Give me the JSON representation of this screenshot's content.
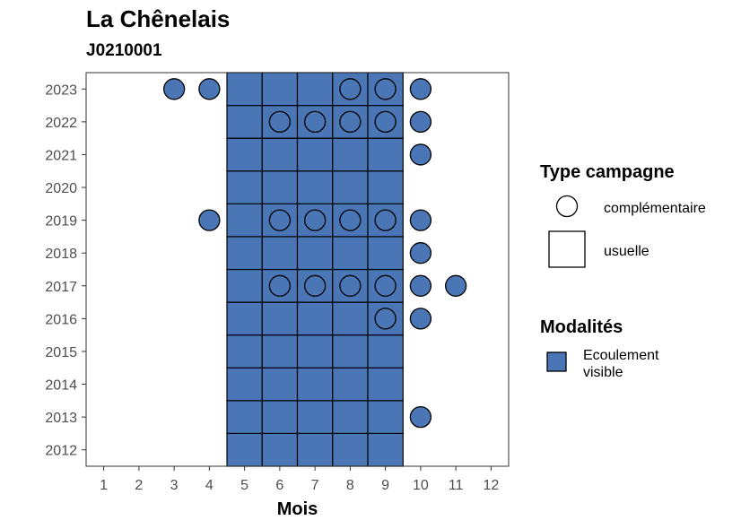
{
  "title": "La Chênelais",
  "subtitle": "J0210001",
  "chart_data": {
    "type": "scatter",
    "title": "La Chênelais",
    "subtitle": "J0210001",
    "xlabel": "Mois",
    "ylabel": "",
    "x_ticks": [
      "1",
      "2",
      "3",
      "4",
      "5",
      "6",
      "7",
      "8",
      "9",
      "10",
      "11",
      "12"
    ],
    "y_ticks": [
      "2012",
      "2013",
      "2014",
      "2015",
      "2016",
      "2017",
      "2018",
      "2019",
      "2020",
      "2021",
      "2022",
      "2023"
    ],
    "xlim": [
      0.5,
      12.5
    ],
    "ylim": [
      2011.5,
      2023.5
    ],
    "grid": false,
    "fill_color": "#4a76b6",
    "usuelle": {
      "months": [
        5,
        6,
        7,
        8,
        9
      ],
      "years": [
        2012,
        2013,
        2014,
        2015,
        2016,
        2017,
        2018,
        2019,
        2020,
        2021,
        2022,
        2023
      ]
    },
    "complementaire_hollow": [
      {
        "month": 8,
        "year": 2023
      },
      {
        "month": 9,
        "year": 2023
      },
      {
        "month": 6,
        "year": 2022
      },
      {
        "month": 7,
        "year": 2022
      },
      {
        "month": 8,
        "year": 2022
      },
      {
        "month": 9,
        "year": 2022
      },
      {
        "month": 6,
        "year": 2019
      },
      {
        "month": 7,
        "year": 2019
      },
      {
        "month": 8,
        "year": 2019
      },
      {
        "month": 9,
        "year": 2019
      },
      {
        "month": 6,
        "year": 2017
      },
      {
        "month": 7,
        "year": 2017
      },
      {
        "month": 8,
        "year": 2017
      },
      {
        "month": 9,
        "year": 2017
      },
      {
        "month": 9,
        "year": 2016
      }
    ],
    "complementaire_filled": [
      {
        "month": 3,
        "year": 2023
      },
      {
        "month": 4,
        "year": 2023
      },
      {
        "month": 10,
        "year": 2023
      },
      {
        "month": 10,
        "year": 2022
      },
      {
        "month": 10,
        "year": 2021
      },
      {
        "month": 4,
        "year": 2019
      },
      {
        "month": 10,
        "year": 2019
      },
      {
        "month": 10,
        "year": 2018
      },
      {
        "month": 10,
        "year": 2017
      },
      {
        "month": 11,
        "year": 2017
      },
      {
        "month": 10,
        "year": 2016
      },
      {
        "month": 10,
        "year": 2013
      }
    ],
    "legend": {
      "placement": "right",
      "type_title": "Type campagne",
      "type_items": [
        "complémentaire",
        "usuelle"
      ],
      "modalites_title": "Modalités",
      "modalites_items": [
        "Ecoulement\nvisible"
      ]
    }
  }
}
